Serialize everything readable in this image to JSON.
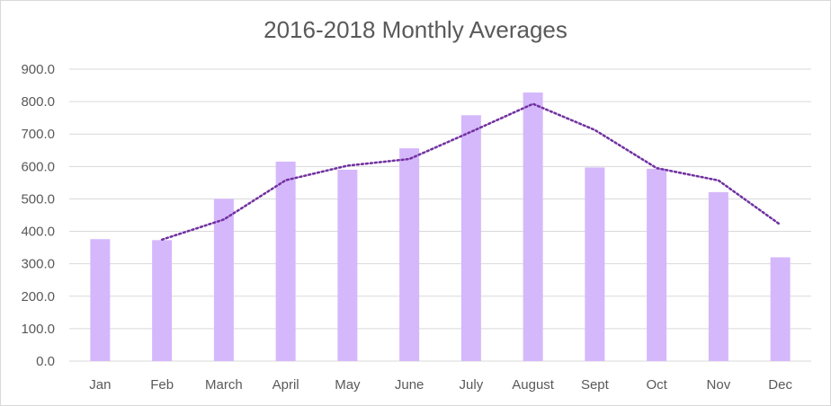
{
  "chart_data": {
    "type": "bar",
    "title": "2016-2018 Monthly Averages",
    "xlabel": "",
    "ylabel": "",
    "categories": [
      "Jan",
      "Feb",
      "March",
      "April",
      "May",
      "June",
      "July",
      "August",
      "Sept",
      "Oct",
      "Nov",
      "Dec"
    ],
    "values": [
      376,
      373,
      500,
      615,
      590,
      656,
      758,
      828,
      597,
      593,
      521,
      320
    ],
    "moving_average": [
      null,
      374.5,
      436.5,
      557.5,
      602.5,
      623,
      707,
      793,
      712.5,
      595,
      557,
      420.5
    ],
    "ylim": [
      0,
      900
    ],
    "yticks": [
      "0.0",
      "100.0",
      "200.0",
      "300.0",
      "400.0",
      "500.0",
      "600.0",
      "700.0",
      "800.0",
      "900.0"
    ],
    "grid": true,
    "legend": "none",
    "colors": {
      "bar": "#d5b8fb",
      "trendline": "#7030a0",
      "grid": "#d9d9d9",
      "text": "#595959"
    }
  }
}
